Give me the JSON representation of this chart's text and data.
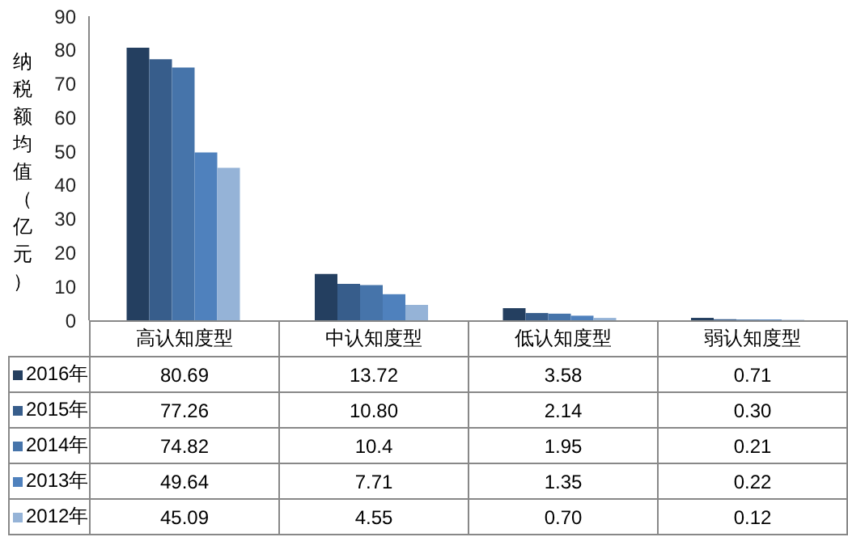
{
  "chart_data": {
    "type": "bar",
    "ylabel": "纳税额均值（亿元）",
    "categories": [
      "高认知度型",
      "中认知度型",
      "低认知度型",
      "弱认知度型"
    ],
    "series": [
      {
        "name": "2016年",
        "color": "#243f60",
        "values": [
          80.69,
          13.72,
          3.58,
          0.71
        ],
        "value_labels": [
          "80.69",
          "13.72",
          "3.58",
          "0.71"
        ]
      },
      {
        "name": "2015年",
        "color": "#375d8b",
        "values": [
          77.26,
          10.8,
          2.14,
          0.3
        ],
        "value_labels": [
          "77.26",
          "10.80",
          "2.14",
          "0.30"
        ]
      },
      {
        "name": "2014年",
        "color": "#4674aa",
        "values": [
          74.82,
          10.4,
          1.95,
          0.21
        ],
        "value_labels": [
          "74.82",
          "10.4",
          "1.95",
          "0.21"
        ]
      },
      {
        "name": "2013年",
        "color": "#4f81bd",
        "values": [
          49.64,
          7.71,
          1.35,
          0.22
        ],
        "value_labels": [
          "49.64",
          "7.71",
          "1.35",
          "0.22"
        ]
      },
      {
        "name": "2012年",
        "color": "#95b3d7",
        "values": [
          45.09,
          4.55,
          0.7,
          0.12
        ],
        "value_labels": [
          "45.09",
          "4.55",
          "0.70",
          "0.12"
        ]
      }
    ],
    "ylim": [
      0,
      90
    ],
    "yticks": [
      0,
      10,
      20,
      30,
      40,
      50,
      60,
      70,
      80,
      90
    ],
    "grid": false,
    "legend": "bottom"
  }
}
